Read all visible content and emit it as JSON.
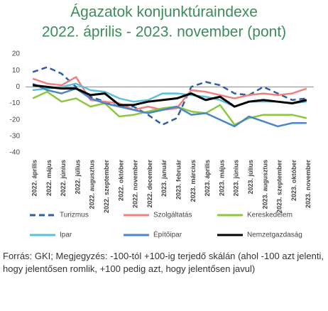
{
  "chart_data": {
    "type": "line",
    "title": "Ágazatok konjunktúraindexe",
    "subtitle": "2022. április - 2023. november (pont)",
    "categories": [
      "2022. április",
      "2022. május",
      "2022. június",
      "2022. július",
      "2022. augusztus",
      "2022. szeptember",
      "2022. október",
      "2022. november",
      "2022. december",
      "2023. január",
      "2023. február",
      "2023. március",
      "2023. április",
      "2023. május",
      "2023. június",
      "2023. július",
      "2023. augusztus",
      "2023. szeptember",
      "2023. október",
      "2023. november"
    ],
    "series": [
      {
        "name": "Turizmus",
        "color": "#2e5fa6",
        "style": "dashed",
        "values": [
          9,
          12,
          8,
          0,
          -6,
          -9,
          -12,
          -12,
          -17,
          -23,
          -19,
          0,
          3,
          1,
          -4,
          -5,
          0,
          -4,
          -8,
          -7
        ]
      },
      {
        "name": "Szolgáltatás",
        "color": "#f08080",
        "style": "solid",
        "values": [
          5,
          2,
          1,
          6,
          -8,
          -9,
          -10,
          -14,
          -12,
          -14,
          -13,
          -2,
          -3,
          -5,
          -7,
          -5,
          -4,
          -5,
          -4,
          -1
        ]
      },
      {
        "name": "Kereskedelem",
        "color": "#8dc63f",
        "style": "solid",
        "values": [
          -7,
          -3,
          -9,
          -7,
          -12,
          -10,
          -18,
          -17,
          -15,
          -13,
          -12,
          -15,
          -16,
          -11,
          -23,
          -19,
          -17,
          -17,
          -17,
          -19
        ]
      },
      {
        "name": "Ipar",
        "color": "#5bc0de",
        "style": "solid",
        "values": [
          -2,
          -1,
          0,
          2,
          -2,
          -3,
          -7,
          -9,
          -8,
          -4,
          -4,
          -5,
          -6,
          -8,
          -12,
          -9,
          -9,
          -9,
          -10,
          -9
        ]
      },
      {
        "name": "Építőipar",
        "color": "#4a86c5",
        "style": "solid",
        "values": [
          2,
          -2,
          -4,
          -1,
          -7,
          -10,
          -12,
          -14,
          -16,
          -14,
          -12,
          -17,
          -16,
          -20,
          -24,
          -18,
          -21,
          -24,
          -22,
          -22
        ]
      },
      {
        "name": "Nemzetgazdaság",
        "color": "#000000",
        "style": "solid",
        "values": [
          1,
          0,
          -1,
          -1,
          -5,
          -4,
          -11,
          -11,
          -9,
          -8,
          -7,
          -4,
          -8,
          -6,
          -12,
          -9,
          -8,
          -9,
          -10,
          -8
        ]
      }
    ],
    "ylim": [
      -40,
      20
    ],
    "yticks": [
      20,
      10,
      0,
      -10,
      -20,
      -30,
      -40
    ],
    "grid": false,
    "note": "Forrás: GKI; Megjegyzés: -100-tól +100-ig terjedő skálán (ahol -100 azt jelenti, hogy jelentősen romlik, +100 pedig azt, hogy jelentősen javul)"
  }
}
